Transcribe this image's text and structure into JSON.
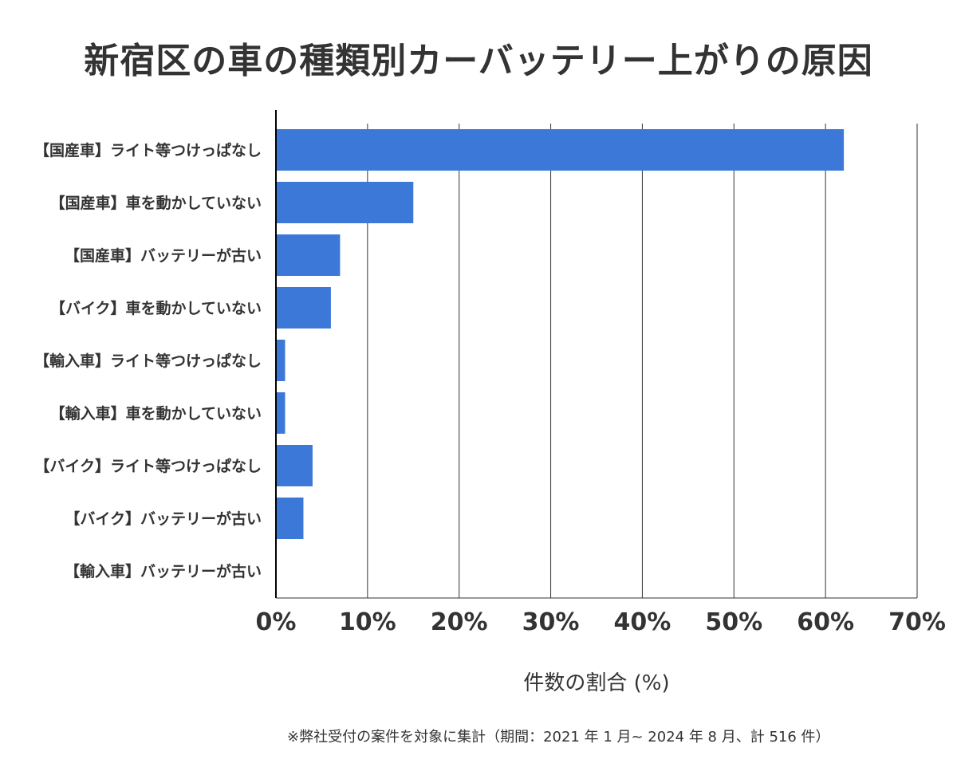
{
  "chart_data": {
    "type": "bar",
    "orientation": "horizontal",
    "title": "新宿区の車の種類別カーバッテリー上がりの原因",
    "xlabel": "件数の割合 (%)",
    "ylabel": "",
    "categories": [
      "【国産車】ライト等つけっぱなし",
      "【国産車】車を動かしていない",
      "【国産車】バッテリーが古い",
      "【バイク】車を動かしていない",
      "【輸入車】ライト等つけっぱなし",
      "【輸入車】車を動かしていない",
      "【バイク】ライト等つけっぱなし",
      "【バイク】バッテリーが古い",
      "【輸入車】バッテリーが古い"
    ],
    "values": [
      62,
      15,
      7,
      6,
      1,
      1,
      4,
      3,
      0
    ],
    "xlim": [
      0,
      70
    ],
    "xticks": [
      "0%",
      "10%",
      "20%",
      "30%",
      "40%",
      "50%",
      "60%",
      "70%"
    ],
    "grid": true,
    "legend": "none",
    "bar_color": "#3c78d8"
  },
  "footnote": "※弊社受付の案件を対象に集計（期間：2021 年 1 月~ 2024 年 8 月、計 516 件）"
}
